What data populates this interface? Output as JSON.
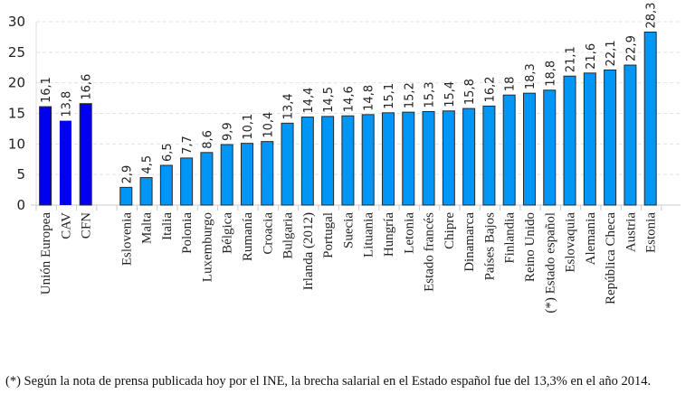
{
  "chart_data": {
    "type": "bar",
    "title": "",
    "xlabel": "",
    "ylabel": "",
    "ylim": [
      0,
      30
    ],
    "yticks": [
      0,
      5,
      10,
      15,
      20,
      25,
      30
    ],
    "grid": true,
    "categories": [
      "Unión Europea",
      "CAV",
      "CFN",
      "",
      "Eslovenia",
      "Malta",
      "Italia",
      "Polonia",
      "Luxemburgo",
      "Bélgica",
      "Rumanía",
      "Croacia",
      "Bulgaria",
      "Irlanda (2012)",
      "Portugal",
      "Suecia",
      "Lituania",
      "Hungría",
      "Letonia",
      "Estado francés",
      "Chipre",
      "Dinamarca",
      "Países Bajos",
      "Finlandia",
      "Reino Unido",
      "(*) Estado español",
      "Eslovaquia",
      "Alemania",
      "República Checa",
      "Austria",
      "Estonia"
    ],
    "values": [
      16.1,
      13.8,
      16.6,
      null,
      2.9,
      4.5,
      6.5,
      7.7,
      8.6,
      9.9,
      10.1,
      10.4,
      13.4,
      14.4,
      14.5,
      14.6,
      14.8,
      15.1,
      15.2,
      15.3,
      15.4,
      15.8,
      16.2,
      18,
      18.3,
      18.8,
      21.1,
      21.6,
      22.1,
      22.9,
      28.3
    ],
    "value_labels": [
      "16,1",
      "13,8",
      "16,6",
      "",
      "2,9",
      "4,5",
      "6,5",
      "7,7",
      "8,6",
      "9,9",
      "10,1",
      "10,4",
      "13,4",
      "14,4",
      "14,5",
      "14,6",
      "14,8",
      "15,1",
      "15,2",
      "15,3",
      "15,4",
      "15,8",
      "16,2",
      "18",
      "18,3",
      "18,8",
      "21,1",
      "21,6",
      "22,1",
      "22,9",
      "28,3"
    ],
    "colors": {
      "highlight": "#0000ee",
      "default": "#0096f5",
      "outline": "#2a2a2a"
    },
    "highlighted": [
      "Unión Europea",
      "CAV",
      "CFN"
    ]
  },
  "footnote": "(*) Según la nota de prensa publicada hoy por el INE, la brecha salarial en el Estado español fue del 13,3% en el año 2014."
}
